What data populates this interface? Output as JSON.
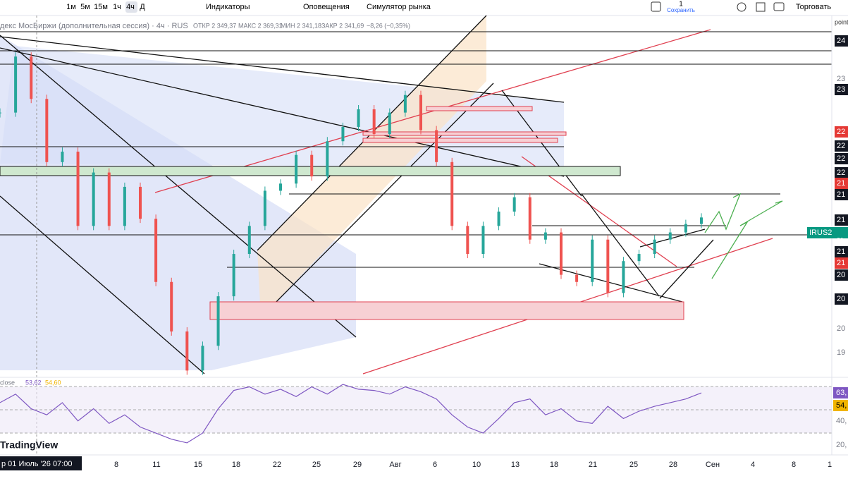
{
  "toolbar": {
    "intervals": [
      "1м",
      "5м",
      "15м",
      "1ч",
      "4ч",
      "Д"
    ],
    "indicators": "Индикаторы",
    "alerts": "Оповещения",
    "replay": "Симулятор рынка",
    "save_count": "1",
    "save": "Сохранить",
    "trade": "Торговать"
  },
  "legend": {
    "symbol": "декс МосБиржи (дополнительная сессия) · 4ч · RUS",
    "open": "ОТКР 2 349,37",
    "high": "МАКС 2 369,31",
    "low": "МИН 2 341,18",
    "close": "ЗАКР 2 341,69",
    "change": "−8,26 (−0,35%)"
  },
  "price_axis": {
    "labels": [
      "24",
      "23",
      "23",
      "22",
      "22",
      "22",
      "22",
      "21",
      "21",
      "21",
      "IRUS2",
      "21",
      "21",
      "20",
      "20",
      "20",
      "19"
    ],
    "corner": "point"
  },
  "chart_data": {
    "type": "candlestick",
    "ylim": [
      1900,
      2450
    ],
    "closes": [
      2301,
      2387,
      2322,
      2225,
      2241,
      2127,
      2209,
      2127,
      2187,
      2138,
      2041,
      1965,
      1905,
      1943,
      2019,
      2084,
      2127,
      2181,
      2192,
      2236,
      2203,
      2257,
      2279,
      2306,
      2268,
      2301,
      2328,
      2274,
      2225,
      2127,
      2084,
      2127,
      2149,
      2171,
      2106,
      2117,
      2052,
      2041,
      2106,
      2024,
      2073,
      2084,
      2106,
      2117,
      2130,
      2140
    ]
  },
  "rsi": {
    "type": "line",
    "name": "close",
    "value": "53,62",
    "signal": "54,60",
    "ylim": [
      15,
      70
    ],
    "values": [
      55,
      62,
      50,
      45,
      55,
      40,
      50,
      38,
      45,
      35,
      30,
      25,
      22,
      30,
      50,
      65,
      68,
      62,
      66,
      60,
      68,
      62,
      70,
      66,
      65,
      62,
      68,
      64,
      58,
      45,
      35,
      30,
      42,
      55,
      58,
      45,
      50,
      40,
      38,
      52,
      42,
      48,
      52,
      55,
      58,
      63
    ],
    "axis_labels": [
      "63,",
      "54,",
      "40,",
      "20,"
    ]
  },
  "brand": "TradingView",
  "cursor_date": "р 01 Июль '26   07:00",
  "time_axis": [
    "8",
    "11",
    "15",
    "18",
    "22",
    "25",
    "29",
    "Авг",
    "6",
    "10",
    "13",
    "18",
    "21",
    "25",
    "28",
    "Сен",
    "4",
    "8",
    "1"
  ],
  "countdown": "01:"
}
